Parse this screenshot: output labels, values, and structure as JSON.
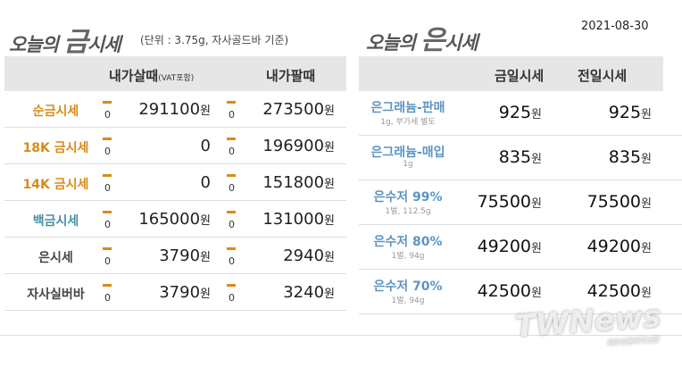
{
  "gold": {
    "title_prefix": "오늘의",
    "title_big": "금",
    "title_suffix": "시세",
    "unit_note": "(단위 : 3.75g, 자사골드바 기준)",
    "col_buy": "내가살때",
    "col_buy_note": "(VAT포함)",
    "col_sell": "내가팔때",
    "currency": "원",
    "rows": [
      {
        "label": "순금시세",
        "color": "#d98a1a",
        "buy_change": "0",
        "buy": "291100",
        "sell_change": "0",
        "sell": "273500"
      },
      {
        "label": "18K 금시세",
        "color": "#d98a1a",
        "buy_change": "0",
        "buy": "0",
        "sell_change": "0",
        "sell": "196900"
      },
      {
        "label": "14K 금시세",
        "color": "#d98a1a",
        "buy_change": "0",
        "buy": "0",
        "sell_change": "0",
        "sell": "151800"
      },
      {
        "label": "백금시세",
        "color": "#4a8fa8",
        "buy_change": "0",
        "buy": "165000",
        "sell_change": "0",
        "sell": "131000"
      },
      {
        "label": "은시세",
        "color": "#444444",
        "buy_change": "0",
        "buy": "3790",
        "sell_change": "0",
        "sell": "2940"
      },
      {
        "label": "자사실버바",
        "color": "#444444",
        "buy_change": "0",
        "buy": "3790",
        "sell_change": "0",
        "sell": "3240"
      }
    ]
  },
  "silver": {
    "title_prefix": "오늘의",
    "title_big": "은",
    "title_suffix": "시세",
    "date": "2021-08-30",
    "col_today": "금일시세",
    "col_prev": "전일시세",
    "currency": "원",
    "rows": [
      {
        "label": "은그래늄-판매",
        "sub": "1g, 부가세 별도",
        "today": "925",
        "prev": "925"
      },
      {
        "label": "은그래늄-매입",
        "sub": "1g",
        "today": "835",
        "prev": "835"
      },
      {
        "label": "은수저 99%",
        "sub": "1벌, 112.5g",
        "today": "75500",
        "prev": "75500"
      },
      {
        "label": "은수저 80%",
        "sub": "1벌, 94g",
        "today": "49200",
        "prev": "49200"
      },
      {
        "label": "은수저 70%",
        "sub": "1벌, 94g",
        "today": "42500",
        "prev": "42500"
      }
    ]
  },
  "watermark": {
    "text": "TWNews",
    "sub": "제주교통복지신문"
  }
}
